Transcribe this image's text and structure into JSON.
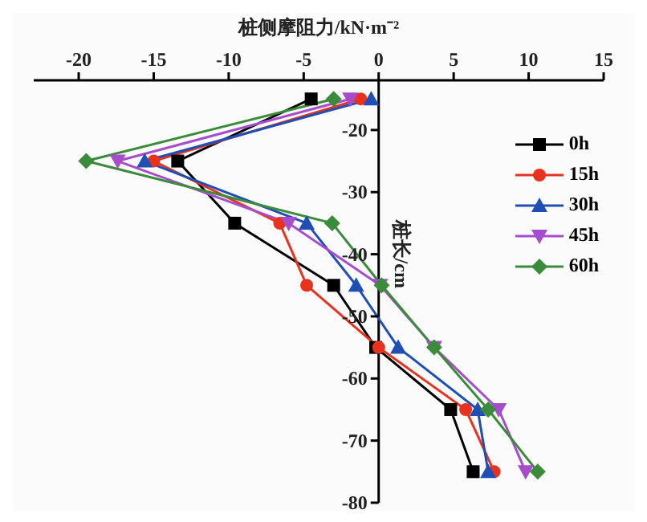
{
  "chart_data": {
    "type": "line",
    "xlabel": "桩侧摩阻力/kN·m⁻²",
    "ylabel": "桩长/cm",
    "xlim": [
      -23,
      15
    ],
    "xticks": [
      -20,
      -15,
      -10,
      -5,
      0,
      5,
      10,
      15
    ],
    "ylim": [
      -80,
      -12
    ],
    "yticks": [
      -20,
      -30,
      -40,
      -50,
      -60,
      -70,
      -80
    ],
    "grid": false,
    "legend": "top right",
    "line_style": "solid",
    "series": [
      {
        "name": "0h",
        "color": "#000000",
        "marker": "square",
        "x": [
          -4.5,
          -13.4,
          -9.6,
          -3.0,
          -0.2,
          4.8,
          6.3
        ],
        "values": [
          -15,
          -25,
          -35,
          -45,
          -55,
          -65,
          -75
        ]
      },
      {
        "name": "15h",
        "color": "#e8321e",
        "marker": "circle",
        "x": [
          -1.2,
          -15.0,
          -6.6,
          -4.8,
          0,
          5.8,
          7.7
        ],
        "values": [
          -15,
          -25,
          -35,
          -45,
          -55,
          -65,
          -75
        ]
      },
      {
        "name": "30h",
        "color": "#1f4fb5",
        "marker": "triangle",
        "x": [
          -0.5,
          -15.6,
          -4.8,
          -1.5,
          1.3,
          6.6,
          7.3
        ],
        "values": [
          -15,
          -25,
          -35,
          -45,
          -55,
          -65,
          -75
        ]
      },
      {
        "name": "45h",
        "color": "#a64dcc",
        "marker": "triangle-down",
        "x": [
          -1.9,
          -17.4,
          -6.0,
          0.1,
          3.7,
          8.0,
          9.8
        ],
        "values": [
          -15,
          -25,
          -35,
          -45,
          -55,
          -65,
          -75
        ]
      },
      {
        "name": "60h",
        "color": "#3a8c3a",
        "marker": "diamond",
        "x": [
          -3.0,
          -19.5,
          -3.1,
          0.2,
          3.7,
          7.3,
          10.6
        ],
        "values": [
          -15,
          -25,
          -35,
          -45,
          -55,
          -65,
          -75
        ]
      }
    ]
  }
}
